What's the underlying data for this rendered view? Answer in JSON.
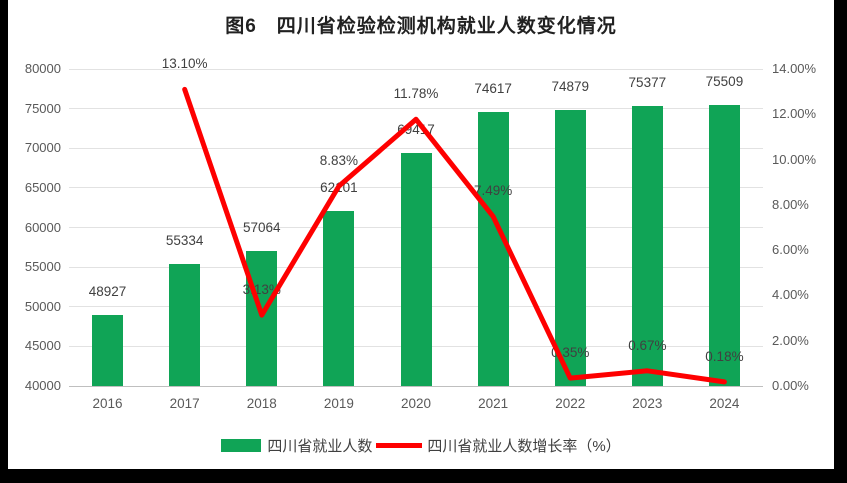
{
  "chart_data": {
    "type": "bar",
    "subtype": "bar-line-combo",
    "title": "图6　四川省检验检测机构就业人数变化情况",
    "categories": [
      "2016",
      "2017",
      "2018",
      "2019",
      "2020",
      "2021",
      "2022",
      "2023",
      "2024"
    ],
    "series": [
      {
        "name": "四川省就业人数",
        "type": "bar",
        "axis": "left",
        "color": "#10a456",
        "values": [
          48927,
          55334,
          57064,
          62101,
          69417,
          74617,
          74879,
          75377,
          75509
        ],
        "labels": [
          "48927",
          "55334",
          "57064",
          "62101",
          "69417",
          "74617",
          "74879",
          "75377",
          "75509"
        ]
      },
      {
        "name": "四川省就业人数增长率（%）",
        "type": "line",
        "axis": "right",
        "color": "#fe0000",
        "values": [
          null,
          13.1,
          3.13,
          8.83,
          11.78,
          7.49,
          0.35,
          0.67,
          0.18
        ],
        "labels": [
          "",
          "13.10%",
          "3.13%",
          "8.83%",
          "11.78%",
          "7.49%",
          "0.35%",
          "0.67%",
          "0.18%"
        ]
      }
    ],
    "left_axis": {
      "min": 40000,
      "max": 80000,
      "step": 5000,
      "ticks": [
        "40000",
        "45000",
        "50000",
        "55000",
        "60000",
        "65000",
        "70000",
        "75000",
        "80000"
      ]
    },
    "right_axis": {
      "min": 0,
      "max": 14,
      "step": 2,
      "ticks": [
        "0.00%",
        "2.00%",
        "4.00%",
        "6.00%",
        "8.00%",
        "10.00%",
        "12.00%",
        "14.00%"
      ]
    },
    "grid": true,
    "legend_position": "bottom"
  }
}
